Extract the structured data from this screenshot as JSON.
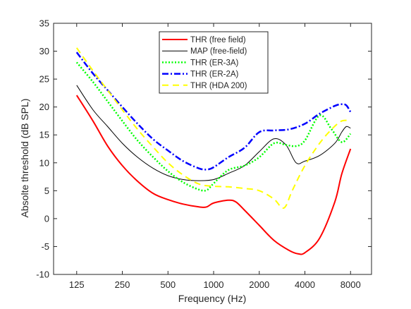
{
  "chart_data": {
    "type": "line",
    "xlabel": "Frequency (Hz)",
    "ylabel": "Absolte threshold (dB SPL)",
    "x_scale": "log",
    "xlim": [
      88,
      11000
    ],
    "ylim": [
      -10,
      35
    ],
    "x_ticks": [
      125,
      250,
      500,
      1000,
      2000,
      4000,
      8000
    ],
    "x_tick_labels": [
      "125",
      "250",
      "500",
      "1000",
      "2000",
      "4000",
      "8000"
    ],
    "y_ticks": [
      -10,
      -5,
      0,
      5,
      10,
      15,
      20,
      25,
      30,
      35
    ],
    "y_tick_labels": [
      "-10",
      "-5",
      "0",
      "5",
      "10",
      "15",
      "20",
      "25",
      "30",
      "35"
    ],
    "grid": false,
    "legend_position": "top-center",
    "series": [
      {
        "name": "THR (free field)",
        "color": "#ff0000",
        "style": "solid",
        "width": 2,
        "x": [
          125,
          160,
          200,
          250,
          315,
          400,
          500,
          630,
          800,
          900,
          1000,
          1250,
          1400,
          1600,
          2000,
          2500,
          3150,
          3600,
          4000,
          5000,
          6300,
          7000,
          8000
        ],
        "y": [
          22.1,
          17.5,
          13,
          9.5,
          6.7,
          4.5,
          3.4,
          2.6,
          2.1,
          2.1,
          2.8,
          3.3,
          3,
          1.5,
          -1.2,
          -3.9,
          -5.7,
          -6.3,
          -6.1,
          -3.5,
          3,
          8,
          12.5
        ]
      },
      {
        "name": "MAP (free-field)",
        "color": "#000000",
        "style": "solid",
        "width": 1,
        "x": [
          125,
          160,
          200,
          250,
          315,
          400,
          500,
          630,
          800,
          1000,
          1250,
          1600,
          2000,
          2500,
          3000,
          3500,
          4000,
          5000,
          6300,
          7000,
          7500,
          8000
        ],
        "y": [
          23.9,
          19.5,
          16.5,
          13.5,
          11,
          9,
          7.7,
          7,
          6.8,
          7,
          8.1,
          9.5,
          12,
          14.3,
          13.2,
          10,
          10.3,
          11.3,
          13.5,
          15.5,
          16.5,
          16.2
        ]
      },
      {
        "name": "THR (ER-3A)",
        "color": "#00ff00",
        "style": "dotted",
        "width": 2.5,
        "x": [
          125,
          160,
          200,
          250,
          315,
          400,
          500,
          630,
          800,
          900,
          1000,
          1250,
          1600,
          2000,
          2500,
          3000,
          3500,
          4000,
          5000,
          6000,
          7000,
          8000
        ],
        "y": [
          28,
          24.5,
          21,
          17.5,
          14,
          11,
          8.5,
          6.5,
          5.2,
          5.1,
          6.3,
          8.7,
          9.5,
          11,
          13.5,
          13.2,
          13,
          14,
          18.5,
          16,
          13.7,
          15.2
        ]
      },
      {
        "name": "THR (ER-2A)",
        "color": "#0000ff",
        "style": "dashdot",
        "width": 2.5,
        "x": [
          125,
          160,
          200,
          250,
          315,
          400,
          500,
          630,
          800,
          900,
          1000,
          1250,
          1600,
          2000,
          2500,
          3150,
          4000,
          5000,
          6300,
          7000,
          7500,
          8000
        ],
        "y": [
          29.8,
          26,
          23,
          20,
          17,
          14.2,
          12.2,
          10.3,
          9,
          8.8,
          9.2,
          11,
          12.7,
          15.5,
          15.8,
          16,
          17,
          18.8,
          20.2,
          20.5,
          20.3,
          19.1
        ]
      },
      {
        "name": "THR (HDA 200)",
        "color": "#ffff00",
        "style": "dashed",
        "width": 2,
        "x": [
          125,
          160,
          200,
          250,
          315,
          400,
          500,
          630,
          800,
          1000,
          1250,
          1600,
          2000,
          2500,
          2800,
          3000,
          3300,
          4000,
          5000,
          6000,
          7000,
          8000
        ],
        "y": [
          30.6,
          26.5,
          23,
          19.5,
          16,
          12.8,
          10,
          7.8,
          6.2,
          5.8,
          5.7,
          5.4,
          5,
          3.5,
          2,
          2.3,
          5,
          9.5,
          13.5,
          16,
          17.5,
          17.5
        ]
      }
    ]
  }
}
